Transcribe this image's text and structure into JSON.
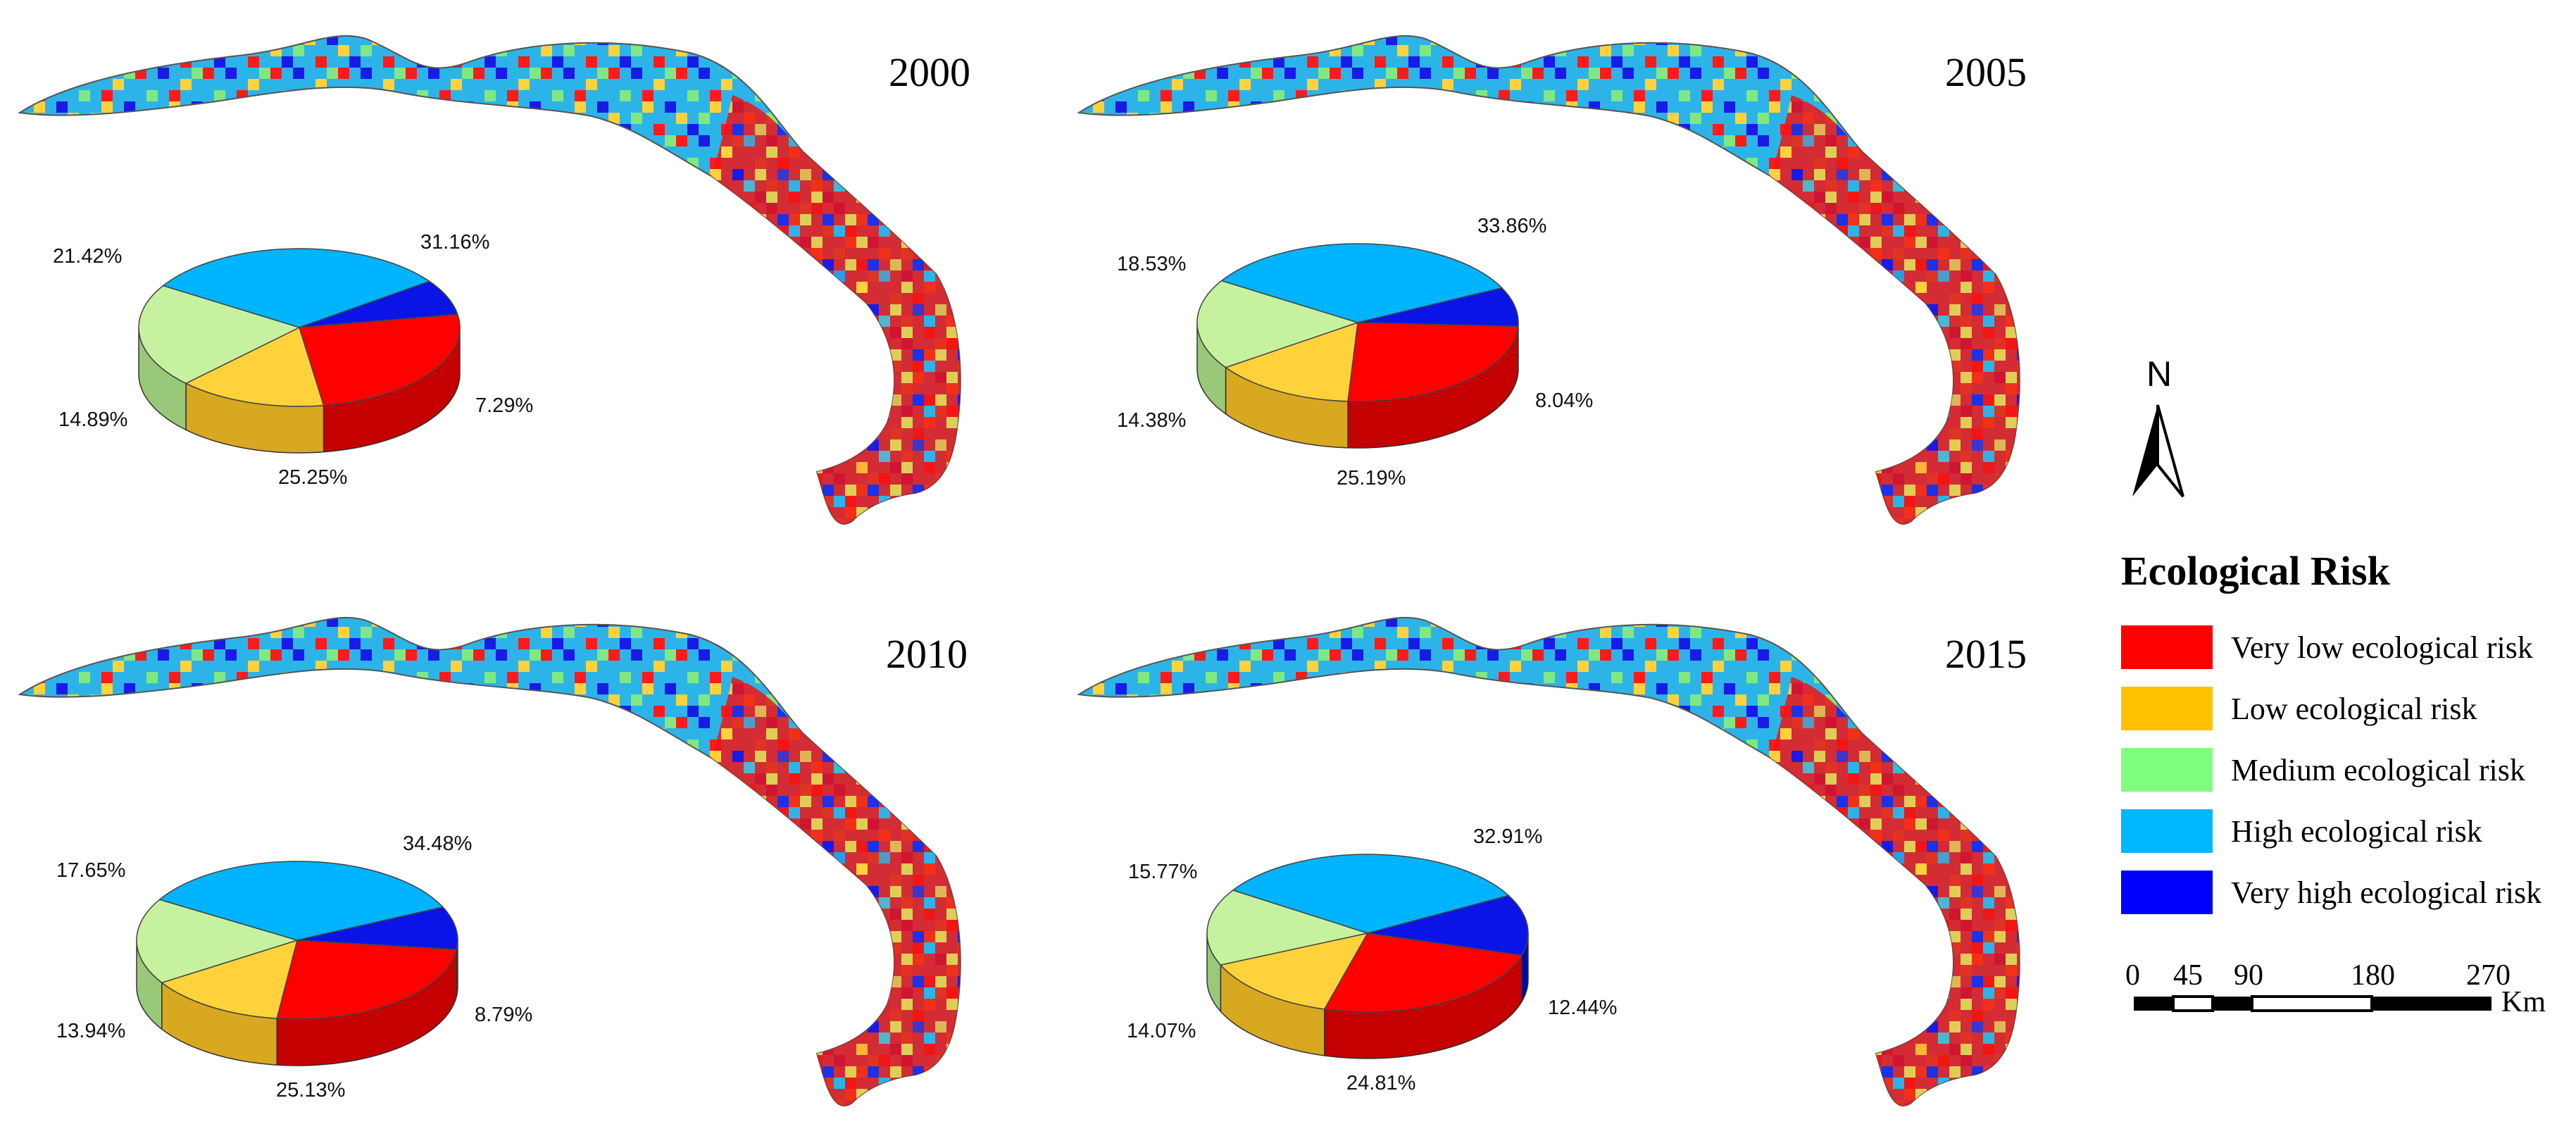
{
  "categories": [
    {
      "key": "very_low",
      "label": "Very low ecological risk",
      "color": "#ff0000",
      "side": "#c40000"
    },
    {
      "key": "low",
      "label": "Low ecological risk",
      "color": "#ffd23c",
      "side": "#d8a820"
    },
    {
      "key": "medium",
      "label": "Medium ecological risk",
      "color": "#c6f2a0",
      "side": "#98c878"
    },
    {
      "key": "high",
      "label": "High ecological risk",
      "color": "#00b4ff",
      "side": "#0088c8"
    },
    {
      "key": "very_high",
      "label": "Very high ecological risk",
      "color": "#0a14e6",
      "side": "#0008a8"
    }
  ],
  "legend": {
    "title": "Ecological Risk",
    "swatch_colors": [
      "#ff0000",
      "#ffc000",
      "#80ff80",
      "#00b8ff",
      "#0000ff"
    ]
  },
  "north_arrow": {
    "label": "N"
  },
  "scale_bar": {
    "ticks": [
      "0",
      "45",
      "90",
      "180",
      "270"
    ],
    "unit": "Km"
  },
  "chart_data": [
    {
      "type": "pie",
      "year": "2000",
      "title": "2000",
      "categories": [
        "Very low ecological risk",
        "Low ecological risk",
        "Medium ecological risk",
        "High ecological risk",
        "Very high ecological risk"
      ],
      "values": [
        25.25,
        14.89,
        21.42,
        31.16,
        7.29
      ],
      "labels": [
        "25.25%",
        "14.89%",
        "21.42%",
        "31.16%",
        "7.29%"
      ]
    },
    {
      "type": "pie",
      "year": "2005",
      "title": "2005",
      "categories": [
        "Very low ecological risk",
        "Low ecological risk",
        "Medium ecological risk",
        "High ecological risk",
        "Very high ecological risk"
      ],
      "values": [
        25.19,
        14.38,
        18.53,
        33.86,
        8.04
      ],
      "labels": [
        "25.19%",
        "14.38%",
        "18.53%",
        "33.86%",
        "8.04%"
      ]
    },
    {
      "type": "pie",
      "year": "2010",
      "title": "2010",
      "categories": [
        "Very low ecological risk",
        "Low ecological risk",
        "Medium ecological risk",
        "High ecological risk",
        "Very high ecological risk"
      ],
      "values": [
        25.13,
        13.94,
        17.65,
        34.48,
        8.79
      ],
      "labels": [
        "25.13%",
        "13.94%",
        "17.65%",
        "34.48%",
        "8.79%"
      ]
    },
    {
      "type": "pie",
      "year": "2015",
      "title": "2015",
      "categories": [
        "Very low ecological risk",
        "Low ecological risk",
        "Medium ecological risk",
        "High ecological risk",
        "Very high ecological risk"
      ],
      "values": [
        24.81,
        14.07,
        15.77,
        32.91,
        12.44
      ],
      "labels": [
        "24.81%",
        "14.07%",
        "15.77%",
        "32.91%",
        "12.44%"
      ]
    }
  ]
}
